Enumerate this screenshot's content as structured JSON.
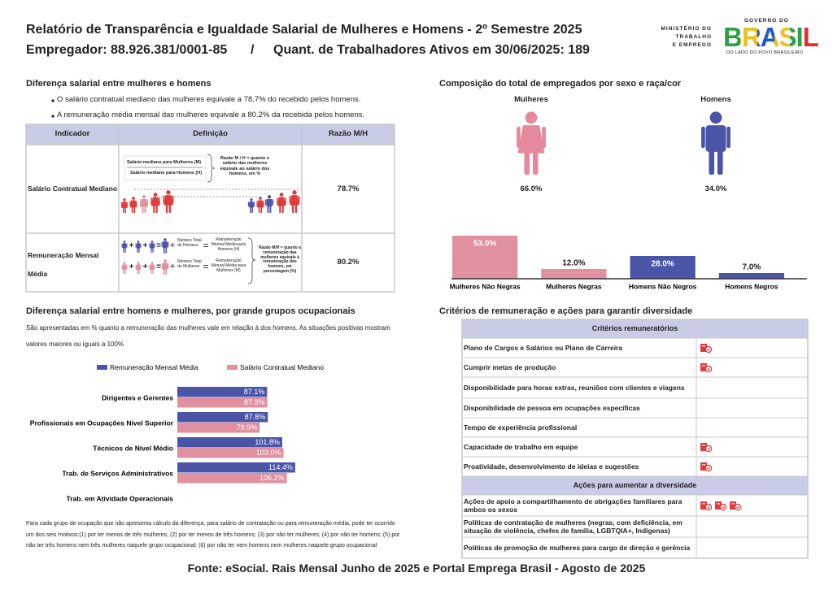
{
  "header": {
    "title": "Relatório de Transparência e Igualdade Salarial de Mulheres e Homens - 2º Semestre 2025",
    "employer": "Empregador: 88.926.381/0001-85",
    "separator": "/",
    "workers": "Quant. de Trabalhadores Ativos em 30/06/2025: 189"
  },
  "logos": {
    "ministry": [
      "MINISTÉRIO DO",
      "TRABALHO",
      "E EMPREGO"
    ],
    "government": "GOVERNO DO",
    "country": "BRASIL",
    "slogan": "DO LADO DO POVO BRASILEIRO"
  },
  "pay_gap": {
    "title": "Diferença salarial entre mulheres e homens",
    "bullets": [
      "O salário contratual mediano das mulheres equivale a 78.7% do recebido pelos homens.",
      "A remuneração média mensal das mulheres equivale a 80.2% da recebida pelos homens."
    ],
    "table": {
      "header": [
        "Indicador",
        "Definição",
        "Razão M/H"
      ],
      "rows": [
        [
          "Salário Contratual Mediano",
          "78.7%"
        ],
        [
          "Remuneração Mensal Média",
          "80.2%"
        ]
      ]
    },
    "diagram": {
      "women_median": "Salário mediano para Mulheres (M)",
      "men_median": "Salário mediano para Homens (H)",
      "median_ratio": "Razão M / H = quanto o salário das mulheres equivale ao salário dos homens, em %",
      "men_total": "Número Total de Homens",
      "men_mean": "Remuneração Mensal Média para Homens (H)",
      "women_total": "Número Total de Mulheres",
      "women_mean": "Remuneração Mensal Média para Mulheres (M)",
      "mean_ratio": "Razão M/H = quanto a remuneração das mulheres equivale à remuneração dos homens, em porcentagem (%)",
      "plus": "+",
      "equals": "=",
      "divide": "÷"
    }
  },
  "composition": {
    "title": "Composição do total de empregados por sexo e raça/cor",
    "groups": [
      {
        "label": "Mulheres",
        "share": "66.0%"
      },
      {
        "label": "Homens",
        "share": "34.0%"
      }
    ]
  },
  "occupations": {
    "title": "Diferença salarial entre homens e mulheres, por grande grupos ocupacionais",
    "subtitle": "São apresentadas em % quanto a remuneração das mulheres vale em relação à dos homens. As situações positivas mostram valores maiores ou iguais a 100%",
    "footnote": "Para cada grupo de ocupação que não apresenta cálculo da diferença, para salário de contratação ou para remuneração média, pode ter ocorrido um dos seis motivos:(1) por ter menos de três mulheres; (2) por ter menos de três homens; (3) por não ter mulheres; (4) por não ter homens; (5) por não ter três homens nem três mulheres naquele grupo ocupacional; (6) por não ter nem homens nem mulheres naquele grupo ocupacional"
  },
  "criteria": {
    "title": "Critérios de remuneração e ações para garantir diversidade",
    "sections": [
      {
        "header": "Critérios remuneratórios",
        "rows": [
          {
            "text": "Plano de Cargos e Salários ou Plano de Carreira",
            "icons": 1
          },
          {
            "text": "Cumprir metas de produção",
            "icons": 1
          },
          {
            "text": "Disponibilidade para horas extras, reuniões com clientes e viagens",
            "icons": 0
          },
          {
            "text": "Disponibilidade de pessoa em ocupações específicas",
            "icons": 0
          },
          {
            "text": "Tempo de experiência profissional",
            "icons": 0
          },
          {
            "text": "Capacidade de trabalho em equipe",
            "icons": 1
          },
          {
            "text": "Proatividade, desenvolvimento de ideias e sugestões",
            "icons": 1
          }
        ]
      },
      {
        "header": "Ações para aumentar a diversidade",
        "rows": [
          {
            "text": "Ações de apoio a compartilhamento de obrigações familiares para ambos os sexos",
            "icons": 3
          },
          {
            "text": "Políticas de contratação de mulheres (negras, com deficiência, em situação de violência, chefes de família, LGBTQIA+, Indígenas)",
            "icons": 0
          },
          {
            "text": "Políticas de promoção de mulheres para cargo de direção e gerência",
            "icons": 0
          }
        ]
      }
    ]
  },
  "source": "Fonte: eSocial. Rais Mensal Junho de 2025 e Portal Emprega Brasil - Agosto de 2025",
  "chart_data": [
    {
      "type": "bar",
      "categories": [
        "Mulheres Não Negras",
        "Mulheres Negras",
        "Homens Não Negros",
        "Homens Negros"
      ],
      "values": [
        53.0,
        12.0,
        28.0,
        7.0
      ],
      "value_labels": [
        "53.0%",
        "12.0%",
        "28.0%",
        "7.0%"
      ],
      "colors": [
        "#e0909f",
        "#e0909f",
        "#4a55a8",
        "#4a55a8"
      ],
      "ylim": [
        0,
        60
      ]
    },
    {
      "type": "hbar",
      "categories": [
        "Dirigentes e Gerentes",
        "Profissionais em Ocupações Nível Superior",
        "Técnicos de Nível Médio",
        "Trab. de Serviços Administrativos",
        "Trab. em Atividade Operacionais"
      ],
      "series": [
        {
          "name": "Remuneração Mensal Média",
          "color": "#4a55a8",
          "values": [
            87.1,
            87.8,
            101.8,
            114.4,
            null
          ],
          "value_labels": [
            "87.1%",
            "87.8%",
            "101.8%",
            "114.4%",
            null
          ]
        },
        {
          "name": "Salário Contratual Mediano",
          "color": "#e0909f",
          "values": [
            87.3,
            79.9,
            103.0,
            106.2,
            null
          ],
          "value_labels": [
            "87.3%",
            "79.9%",
            "103.0%",
            "106.2%",
            null
          ]
        }
      ],
      "xlim": [
        0,
        150
      ]
    }
  ]
}
